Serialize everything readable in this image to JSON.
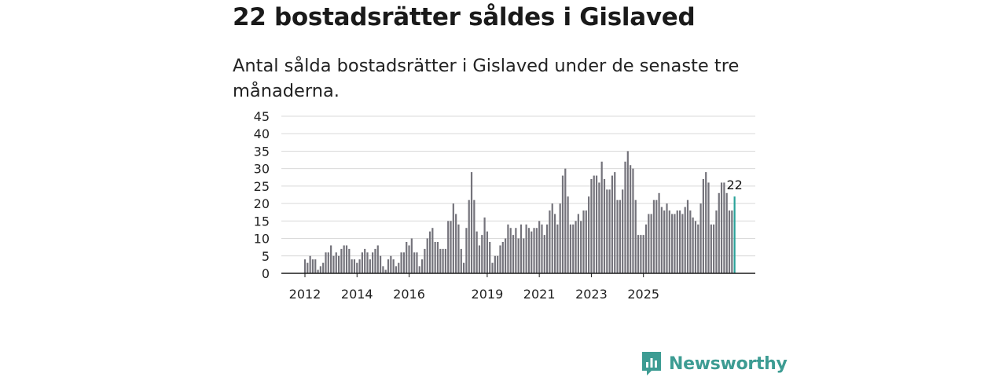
{
  "header": {
    "title": "22 bostadsrätter såldes i Gislaved",
    "subtitle": "Antal sålda bostadsrätter i Gislaved under de senaste tre månaderna."
  },
  "chart_data": {
    "type": "bar",
    "title": "22 bostadsrätter såldes i Gislaved",
    "subtitle": "Antal sålda bostadsrätter i Gislaved under de senaste tre månaderna.",
    "xlabel": "",
    "ylabel": "",
    "ylim": [
      0,
      45
    ],
    "yticks": [
      0,
      5,
      10,
      15,
      20,
      25,
      30,
      35,
      40,
      45
    ],
    "x_start": "2011-12",
    "x_ticks": [
      {
        "label": "2012",
        "index": 0
      },
      {
        "label": "2014",
        "index": 20
      },
      {
        "label": "2016",
        "index": 40
      },
      {
        "label": "2019",
        "index": 70
      },
      {
        "label": "2021",
        "index": 90
      },
      {
        "label": "2023",
        "index": 110
      },
      {
        "label": "2025",
        "index": 130
      }
    ],
    "values": [
      4,
      3,
      5,
      4,
      4,
      1,
      2,
      3,
      6,
      6,
      8,
      5,
      6,
      5,
      7,
      8,
      8,
      7,
      4,
      4,
      3,
      4,
      6,
      7,
      6,
      4,
      6,
      7,
      8,
      5,
      2,
      1,
      4,
      5,
      4,
      2,
      3,
      6,
      6,
      9,
      8,
      10,
      6,
      6,
      2,
      4,
      7,
      10,
      12,
      13,
      9,
      9,
      7,
      7,
      7,
      15,
      15,
      20,
      17,
      14,
      7,
      3,
      13,
      21,
      29,
      21,
      12,
      8,
      11,
      16,
      12,
      9,
      3,
      5,
      5,
      8,
      9,
      10,
      14,
      13,
      11,
      13,
      10,
      14,
      10,
      14,
      13,
      12,
      13,
      13,
      15,
      14,
      11,
      14,
      18,
      20,
      17,
      14,
      20,
      28,
      30,
      22,
      14,
      14,
      15,
      17,
      15,
      18,
      18,
      22,
      27,
      28,
      28,
      26,
      32,
      27,
      24,
      24,
      28,
      29,
      21,
      21,
      24,
      32,
      35,
      31,
      30,
      21,
      11,
      11,
      11,
      14,
      17,
      17,
      21,
      21,
      23,
      19,
      18,
      20,
      18,
      17,
      17,
      18,
      18,
      17,
      19,
      21,
      18,
      16,
      15,
      14,
      20,
      27,
      29,
      26,
      14,
      14,
      18,
      23,
      26,
      26,
      23,
      18,
      18,
      22
    ],
    "highlight": {
      "index": 165,
      "value": 22,
      "label": "22"
    },
    "colors": {
      "bar": "#74737b",
      "highlight": "#2aa39a",
      "grid": "#d9d9d9",
      "axis": "#1a1a1a"
    }
  },
  "brand": {
    "name": "Newsworthy",
    "color": "#3d9c93"
  }
}
